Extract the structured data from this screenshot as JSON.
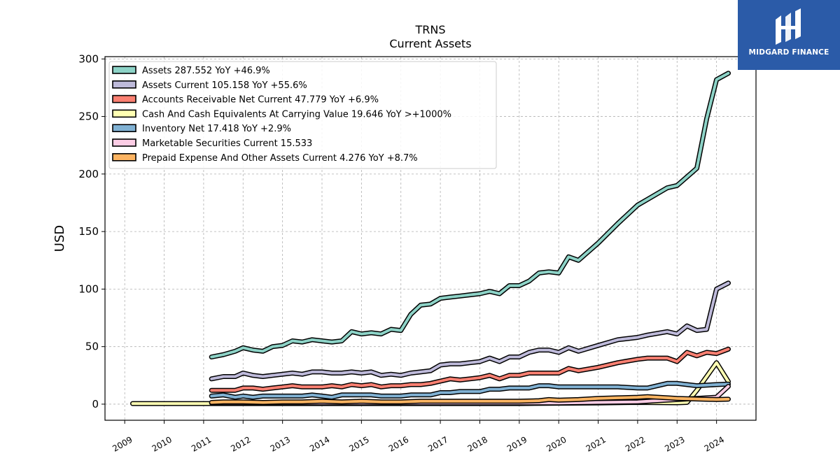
{
  "logo": {
    "text": "MIDGARD FINANCE",
    "background": "#2b5ba8"
  },
  "chart_data": {
    "type": "line",
    "title": "TRNS",
    "subtitle": "Current  Assets",
    "ylabel": "USD",
    "xlabel": "",
    "ylim": [
      -14,
      302
    ],
    "xlim": [
      2008.5,
      2025.0
    ],
    "yticks": [
      0,
      50,
      100,
      150,
      200,
      250,
      300
    ],
    "xticks": [
      "2009",
      "2010",
      "2011",
      "2012",
      "2013",
      "2014",
      "2015",
      "2016",
      "2017",
      "2018",
      "2019",
      "2020",
      "2021",
      "2022",
      "2023",
      "2024"
    ],
    "grid": true,
    "legend_position": "top-left",
    "series": [
      {
        "name": "Assets  287.552 YoY +46.9%",
        "color": "#8dd3c7",
        "x": [
          2011.2,
          2011.5,
          2011.8,
          2012.0,
          2012.25,
          2012.5,
          2012.75,
          2013.0,
          2013.25,
          2013.5,
          2013.75,
          2014.0,
          2014.25,
          2014.5,
          2014.75,
          2015.0,
          2015.25,
          2015.5,
          2015.75,
          2016.0,
          2016.25,
          2016.5,
          2016.75,
          2017.0,
          2017.25,
          2017.5,
          2017.75,
          2018.0,
          2018.25,
          2018.5,
          2018.75,
          2019.0,
          2019.25,
          2019.5,
          2019.75,
          2020.0,
          2020.25,
          2020.5,
          2021.0,
          2021.5,
          2022.0,
          2022.25,
          2022.75,
          2023.0,
          2023.5,
          2023.75,
          2024.0,
          2024.3
        ],
        "values": [
          41,
          43,
          46,
          49,
          47,
          46,
          50,
          51,
          55,
          54,
          56,
          55,
          54,
          55,
          63,
          61,
          62,
          61,
          65,
          64,
          78,
          86,
          87,
          92,
          93,
          94,
          95,
          96,
          98,
          96,
          103,
          103,
          107,
          114,
          115,
          114,
          128,
          125,
          140,
          157,
          173,
          178,
          188,
          190,
          205,
          248,
          282,
          287.6
        ]
      },
      {
        "name": "Assets Current  105.158 YoY +55.6%",
        "color": "#bebada",
        "x": [
          2011.2,
          2011.5,
          2011.8,
          2012.0,
          2012.25,
          2012.5,
          2012.75,
          2013.0,
          2013.25,
          2013.5,
          2013.75,
          2014.0,
          2014.25,
          2014.5,
          2014.75,
          2015.0,
          2015.25,
          2015.5,
          2015.75,
          2016.0,
          2016.25,
          2016.5,
          2016.75,
          2017.0,
          2017.25,
          2017.5,
          2017.75,
          2018.0,
          2018.25,
          2018.5,
          2018.75,
          2019.0,
          2019.25,
          2019.5,
          2019.75,
          2020.0,
          2020.25,
          2020.5,
          2021.0,
          2021.5,
          2022.0,
          2022.25,
          2022.75,
          2023.0,
          2023.25,
          2023.5,
          2023.75,
          2024.0,
          2024.3
        ],
        "values": [
          22,
          24,
          24,
          27,
          25,
          24,
          25,
          26,
          27,
          26,
          28,
          28,
          27,
          27,
          28,
          27,
          28,
          25,
          26,
          25,
          27,
          28,
          29,
          34,
          35,
          35,
          36,
          37,
          40,
          37,
          41,
          41,
          45,
          47,
          47,
          45,
          49,
          46,
          51,
          56,
          58,
          60,
          63,
          61,
          68,
          64,
          65,
          100,
          105.2
        ]
      },
      {
        "name": "Accounts Receivable Net Current  47.779 YoY +6.9%",
        "color": "#fb8072",
        "x": [
          2011.2,
          2011.5,
          2011.8,
          2012.0,
          2012.25,
          2012.5,
          2012.75,
          2013.0,
          2013.25,
          2013.5,
          2013.75,
          2014.0,
          2014.25,
          2014.5,
          2014.75,
          2015.0,
          2015.25,
          2015.5,
          2015.75,
          2016.0,
          2016.25,
          2016.5,
          2016.75,
          2017.0,
          2017.25,
          2017.5,
          2017.75,
          2018.0,
          2018.25,
          2018.5,
          2018.75,
          2019.0,
          2019.25,
          2019.5,
          2019.75,
          2020.0,
          2020.25,
          2020.5,
          2021.0,
          2021.5,
          2022.0,
          2022.25,
          2022.75,
          2023.0,
          2023.25,
          2023.5,
          2023.75,
          2024.0,
          2024.3
        ],
        "values": [
          12,
          12,
          12,
          14,
          14,
          13,
          14,
          15,
          16,
          15,
          15,
          15,
          16,
          15,
          17,
          16,
          17,
          15,
          16,
          16,
          17,
          17,
          18,
          20,
          22,
          21,
          22,
          23,
          25,
          22,
          25,
          25,
          27,
          27,
          27,
          27,
          31,
          29,
          32,
          36,
          39,
          40,
          40,
          37,
          45,
          42,
          45,
          44,
          47.8
        ]
      },
      {
        "name": "Cash And Cash Equivalents At Carrying Value  19.646 YoY >+1000%",
        "color": "#ffffb3",
        "x": [
          2009.2,
          2010.0,
          2011.0,
          2011.2,
          2012.0,
          2013.0,
          2014.0,
          2015.0,
          2016.0,
          2017.0,
          2018.0,
          2019.0,
          2020.0,
          2021.0,
          2022.0,
          2023.0,
          2023.25,
          2023.5,
          2024.0,
          2024.3
        ],
        "values": [
          0.5,
          0.5,
          0.5,
          0.5,
          0.5,
          0.5,
          0.5,
          0.5,
          0.5,
          0.5,
          0.5,
          0.5,
          0.8,
          1,
          1.5,
          1.2,
          1.5,
          12,
          36,
          19.6
        ]
      },
      {
        "name": "Inventory Net  17.418 YoY +2.9%",
        "color": "#80b1d3",
        "x": [
          2011.2,
          2011.5,
          2011.8,
          2012.0,
          2012.25,
          2012.5,
          2012.75,
          2013.0,
          2013.25,
          2013.5,
          2013.75,
          2014.0,
          2014.25,
          2014.5,
          2014.75,
          2015.0,
          2015.25,
          2015.5,
          2015.75,
          2016.0,
          2016.25,
          2016.5,
          2016.75,
          2017.0,
          2017.25,
          2017.5,
          2017.75,
          2018.0,
          2018.25,
          2018.5,
          2018.75,
          2019.0,
          2019.25,
          2019.5,
          2019.75,
          2020.0,
          2020.5,
          2021.0,
          2021.5,
          2022.0,
          2022.25,
          2022.75,
          2023.0,
          2023.5,
          2024.0,
          2024.3
        ],
        "values": [
          7,
          8,
          6,
          7,
          6,
          7,
          7,
          7,
          7,
          7,
          8,
          7,
          6,
          8,
          8,
          8,
          8,
          7,
          7,
          7,
          8,
          8,
          8,
          10,
          10,
          11,
          11,
          11,
          13,
          13,
          14,
          14,
          14,
          16,
          16,
          15,
          15,
          15,
          15,
          14,
          14,
          18,
          18,
          16,
          17,
          17.4
        ]
      },
      {
        "name": "Marketable Securities Current  15.533",
        "color": "#fccde5",
        "x": [
          2011.2,
          2012.0,
          2013.0,
          2014.0,
          2015.0,
          2016.0,
          2017.0,
          2018.0,
          2019.0,
          2020.0,
          2021.0,
          2022.0,
          2022.5,
          2023.0,
          2023.5,
          2024.0,
          2024.3
        ],
        "values": [
          1,
          1,
          1,
          1,
          1,
          1,
          1,
          1,
          1,
          1,
          1.5,
          2,
          3,
          4,
          5,
          6,
          15.5
        ]
      },
      {
        "name": "Prepaid Expense And Other Assets Current  4.276 YoY +8.7%",
        "color": "#fdb462",
        "x": [
          2011.2,
          2011.5,
          2012.0,
          2012.5,
          2013.0,
          2013.5,
          2014.0,
          2014.5,
          2015.0,
          2015.5,
          2016.0,
          2016.5,
          2017.0,
          2017.5,
          2018.0,
          2018.5,
          2019.0,
          2019.5,
          2019.75,
          2020.0,
          2020.5,
          2021.0,
          2021.5,
          2022.0,
          2022.25,
          2022.75,
          2023.0,
          2023.5,
          2024.0,
          2024.3
        ],
        "values": [
          1.5,
          2,
          2,
          1.5,
          2,
          2,
          2.5,
          2,
          2.5,
          2,
          2,
          2.5,
          2.5,
          2.5,
          2.5,
          2.5,
          2.5,
          3,
          4,
          3.5,
          4,
          5,
          5.5,
          6,
          6.5,
          5.5,
          5,
          4.5,
          4,
          4.3
        ]
      }
    ]
  }
}
